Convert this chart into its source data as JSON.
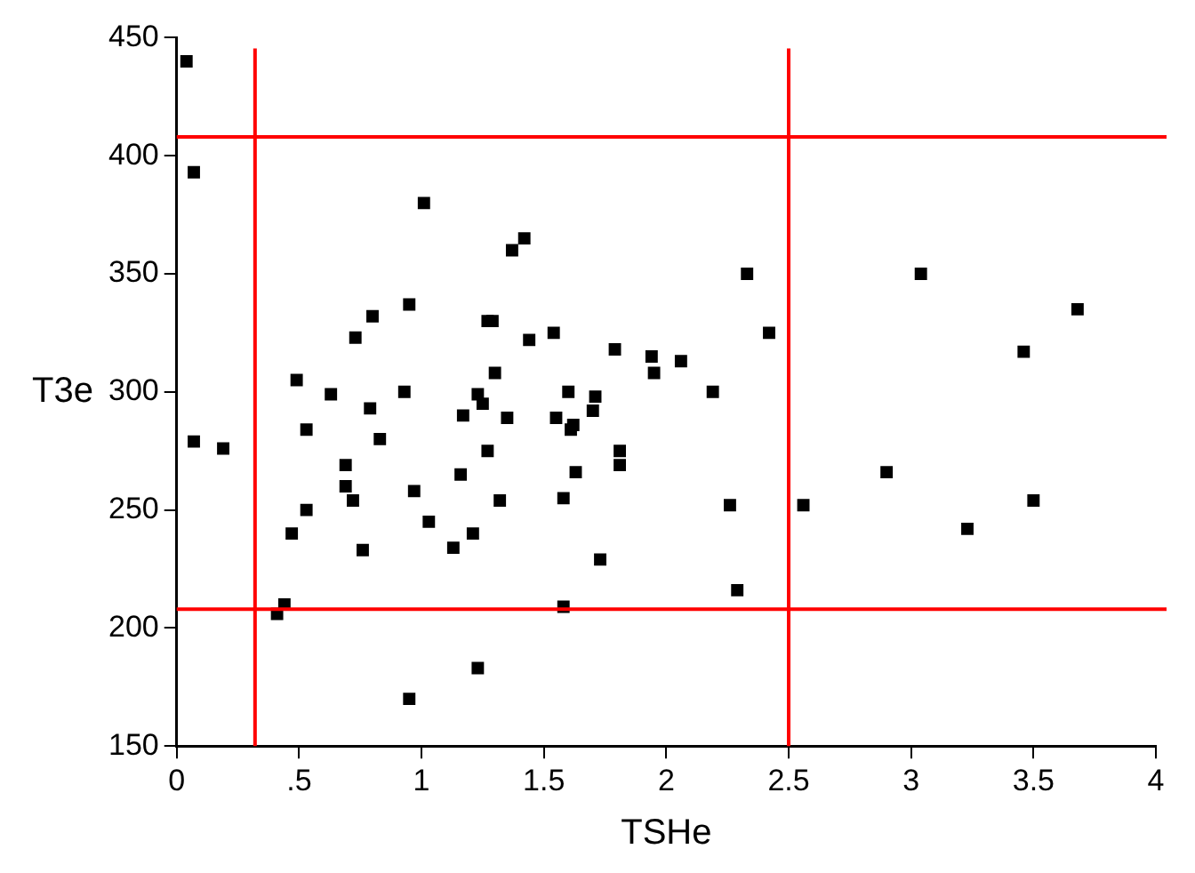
{
  "chart_data": {
    "type": "scatter",
    "xlabel": "TSHe",
    "ylabel": "T3e",
    "marker": "square",
    "grid": false,
    "legend": false,
    "xlim": [
      0,
      4
    ],
    "xticks": [
      0,
      {
        "value": 0.5,
        "label": ".5"
      },
      1,
      1.5,
      2,
      2.5,
      3,
      3.5,
      4
    ],
    "ylim": [
      150,
      450
    ],
    "yticks": [
      150,
      200,
      250,
      300,
      350,
      400,
      450
    ],
    "series": [
      {
        "color": "#000000",
        "x": [
          0.04,
          0.07,
          0.07,
          0.19,
          0.41,
          0.44,
          0.47,
          0.49,
          0.53,
          0.53,
          0.63,
          0.69,
          0.69,
          0.72,
          0.73,
          0.76,
          0.8,
          0.79,
          0.83,
          0.93,
          0.95,
          0.97,
          0.95,
          1.01,
          1.03,
          1.16,
          1.17,
          1.13,
          1.21,
          1.23,
          1.23,
          1.25,
          1.27,
          1.27,
          1.29,
          1.3,
          1.32,
          1.35,
          1.37,
          1.42,
          1.44,
          1.54,
          1.55,
          1.58,
          1.58,
          1.6,
          1.61,
          1.62,
          1.63,
          1.7,
          1.71,
          1.73,
          1.79,
          1.81,
          1.81,
          1.94,
          1.95,
          2.06,
          2.19,
          2.26,
          2.29,
          2.33,
          2.42,
          2.56,
          2.9,
          3.04,
          3.23,
          3.46,
          3.5,
          3.68
        ],
        "values": [
          440,
          393,
          279,
          276,
          206,
          210,
          240,
          305,
          284,
          250,
          299,
          269,
          260,
          254,
          323,
          233,
          332,
          293,
          280,
          300,
          337,
          258,
          170,
          380,
          245,
          265,
          290,
          234,
          240,
          183,
          299,
          295,
          275,
          330,
          330,
          308,
          254,
          289,
          360,
          365,
          322,
          325,
          289,
          255,
          209,
          300,
          284,
          286,
          266,
          292,
          298,
          229,
          318,
          275,
          269,
          315,
          308,
          313,
          300,
          252,
          216,
          350,
          325,
          252,
          266,
          350,
          242,
          317,
          254,
          335
        ]
      }
    ],
    "ref_lines": [
      {
        "axis": "x",
        "value": 0.32,
        "color": "#ff0000"
      },
      {
        "axis": "x",
        "value": 2.5,
        "color": "#ff0000"
      },
      {
        "axis": "y",
        "value": 408,
        "color": "#ff0000"
      },
      {
        "axis": "y",
        "value": 208,
        "color": "#ff0000"
      }
    ]
  }
}
